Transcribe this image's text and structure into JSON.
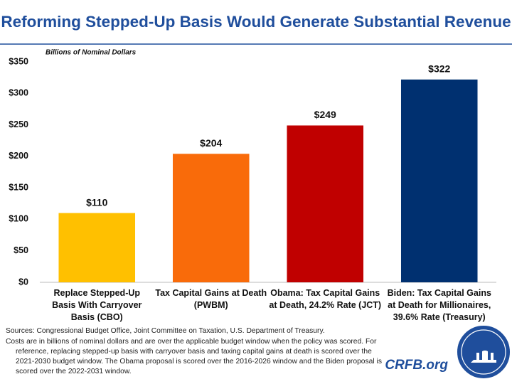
{
  "chart_data": {
    "type": "bar",
    "title": "Reforming Stepped-Up Basis Would Generate Substantial Revenue",
    "y_label": "Billions of Nominal Dollars",
    "categories": [
      "Replace Stepped-Up Basis With Carryover Basis (CBO)",
      "Tax Capital Gains at Death (PWBM)",
      "Obama: Tax Capital Gains at Death, 24.2% Rate (JCT)",
      "Biden: Tax Capital Gains at Death for Millionaires, 39.6% Rate (Treasury)"
    ],
    "values": [
      110,
      204,
      249,
      322
    ],
    "value_labels": [
      "$110",
      "$204",
      "$249",
      "$322"
    ],
    "colors": [
      "#ffc000",
      "#f96b0a",
      "#c00000",
      "#003070"
    ],
    "ylim": [
      0,
      350
    ],
    "yticks": [
      {
        "value": 0,
        "label": "$0"
      },
      {
        "value": 50,
        "label": "$50"
      },
      {
        "value": 100,
        "label": "$100"
      },
      {
        "value": 150,
        "label": "$150"
      },
      {
        "value": 200,
        "label": "$200"
      },
      {
        "value": 250,
        "label": "$250"
      },
      {
        "value": 300,
        "label": "$300"
      },
      {
        "value": 350,
        "label": "$350"
      }
    ],
    "grid": false,
    "source": "Sources: Congressional Budget Office, Joint Committee on Taxation, U.S. Department of Treasury.",
    "note": "Costs are in billions of nominal dollars and are over the applicable budget window when the policy was scored. For reference, replacing stepped-up basis with carryover basis and taxing capital gains at death is scored over the 2021-2030 budget window. The Obama proposal is scored over the 2016-2026 window and the Biden proposal is scored over the 2022-2031 window.",
    "logo_text": "CRFB.org"
  }
}
